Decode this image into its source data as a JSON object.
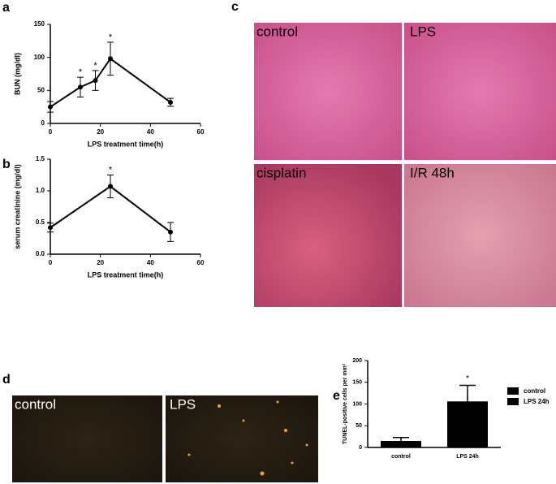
{
  "panel_labels": [
    "a",
    "b",
    "c",
    "d",
    "e"
  ],
  "micrographs_c": [
    "control",
    "LPS",
    "cisplatin",
    "I/R 48h"
  ],
  "micrographs_d": [
    "control",
    "LPS"
  ],
  "chart_data": [
    {
      "type": "line",
      "x": [
        0,
        12,
        18,
        24,
        48
      ],
      "values": [
        25,
        55,
        65,
        98,
        32
      ],
      "errors": [
        8,
        15,
        15,
        25,
        6
      ],
      "significance": [
        null,
        "*",
        "*",
        "*",
        null
      ],
      "xlabel": "LPS treatment time(h)",
      "ylabel": "BUN (mg/dl)",
      "xlim": [
        0,
        60
      ],
      "xticks": [
        0,
        20,
        40,
        60
      ],
      "ylim": [
        0,
        150
      ],
      "yticks": [
        0,
        50,
        100,
        150
      ],
      "color": "#000000"
    },
    {
      "type": "line",
      "x": [
        0,
        24,
        48
      ],
      "values": [
        0.42,
        1.07,
        0.35
      ],
      "errors": [
        0.07,
        0.18,
        0.15
      ],
      "significance": [
        null,
        "*",
        null
      ],
      "xlabel": "LPS treatment time(h)",
      "ylabel": "serum creatinine (mg/dl)",
      "xlim": [
        0,
        60
      ],
      "xticks": [
        0,
        20,
        40,
        60
      ],
      "ylim": [
        0,
        1.5
      ],
      "yticks": [
        {
          "value": 0,
          "label": "0.0"
        },
        {
          "value": 0.5,
          "label": "0.5"
        },
        {
          "value": 1,
          "label": "1.0"
        },
        {
          "value": 1.5,
          "label": "1.5"
        }
      ],
      "color": "#000000"
    },
    {
      "type": "bar",
      "categories": [
        "control",
        "LPS 24h"
      ],
      "values": [
        15,
        106
      ],
      "errors": [
        8,
        37
      ],
      "significance": [
        null,
        "*"
      ],
      "ylabel": "TUNEL-positive cells per mm²",
      "ylim": [
        0,
        200
      ],
      "yticks": [
        0,
        50,
        100,
        150,
        200
      ],
      "color": "#000000"
    }
  ]
}
